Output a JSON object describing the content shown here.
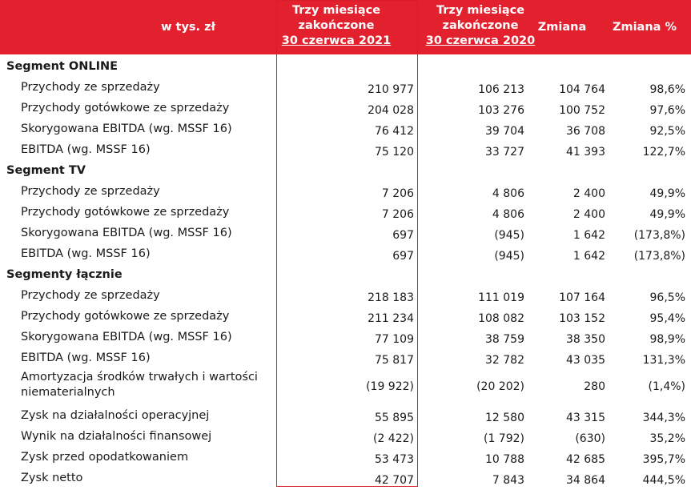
{
  "header": {
    "unit": "w tys. zł",
    "col1": [
      "Trzy miesiące",
      "zakończone",
      "30 czerwca 2021"
    ],
    "col2": [
      "Trzy miesiące",
      "zakończone",
      "30 czerwca 2020"
    ],
    "col3": "Zmiana",
    "col4": "Zmiana %"
  },
  "rows": [
    {
      "type": "segment",
      "label": "Segment ONLINE"
    },
    {
      "type": "data",
      "label": "Przychody ze sprzedaży",
      "v": [
        "210 977",
        "106 213",
        "104 764",
        "98,6%"
      ]
    },
    {
      "type": "data",
      "label": "Przychody gotówkowe ze sprzedaży",
      "v": [
        "204 028",
        "103 276",
        "100 752",
        "97,6%"
      ]
    },
    {
      "type": "data",
      "label": "Skorygowana EBITDA (wg. MSSF 16)",
      "v": [
        "76 412",
        "39 704",
        "36 708",
        "92,5%"
      ]
    },
    {
      "type": "data",
      "label": "EBITDA (wg. MSSF 16)",
      "v": [
        "75 120",
        "33 727",
        "41 393",
        "122,7%"
      ]
    },
    {
      "type": "segment",
      "label": "Segment TV"
    },
    {
      "type": "data",
      "label": "Przychody ze sprzedaży",
      "v": [
        "7 206",
        "4 806",
        "2 400",
        "49,9%"
      ]
    },
    {
      "type": "data",
      "label": "Przychody gotówkowe ze sprzedaży",
      "v": [
        "7 206",
        "4 806",
        "2 400",
        "49,9%"
      ]
    },
    {
      "type": "data",
      "label": "Skorygowana EBITDA (wg. MSSF 16)",
      "v": [
        "697",
        "(945)",
        "1 642",
        "(173,8%)"
      ]
    },
    {
      "type": "data",
      "label": "EBITDA (wg. MSSF 16)",
      "v": [
        "697",
        "(945)",
        "1 642",
        "(173,8%)"
      ]
    },
    {
      "type": "segment",
      "label": "Segmenty łącznie"
    },
    {
      "type": "data",
      "label": "Przychody ze sprzedaży",
      "v": [
        "218 183",
        "111 019",
        "107 164",
        "96,5%"
      ]
    },
    {
      "type": "data",
      "label": "Przychody gotówkowe ze sprzedaży",
      "v": [
        "211 234",
        "108 082",
        "103 152",
        "95,4%"
      ]
    },
    {
      "type": "data",
      "label": "Skorygowana EBITDA (wg. MSSF 16)",
      "v": [
        "77 109",
        "38 759",
        "38 350",
        "98,9%"
      ]
    },
    {
      "type": "data",
      "label": "EBITDA (wg. MSSF 16)",
      "v": [
        "75 817",
        "32 782",
        "43 035",
        "131,3%"
      ]
    },
    {
      "type": "tall",
      "label": "Amortyzacja środków trwałych i wartości niematerialnych",
      "v": [
        "(19 922)",
        "(20 202)",
        "280",
        "(1,4%)"
      ]
    },
    {
      "type": "data",
      "label": "Zysk na działalności operacyjnej",
      "v": [
        "55 895",
        "12 580",
        "43 315",
        "344,3%"
      ]
    },
    {
      "type": "data",
      "label": "Wynik na działalności finansowej",
      "v": [
        "(2 422)",
        "(1 792)",
        "(630)",
        "35,2%"
      ]
    },
    {
      "type": "data",
      "label": "Zysk przed opodatkowaniem",
      "v": [
        "53 473",
        "10 788",
        "42 685",
        "395,7%"
      ]
    },
    {
      "type": "data",
      "label": "Zysk netto",
      "v": [
        "42 707",
        "7 843",
        "34 864",
        "444,5%"
      ]
    }
  ],
  "colors": {
    "header_bg": "#e3202e",
    "highlight_border": "#d81e2c"
  }
}
